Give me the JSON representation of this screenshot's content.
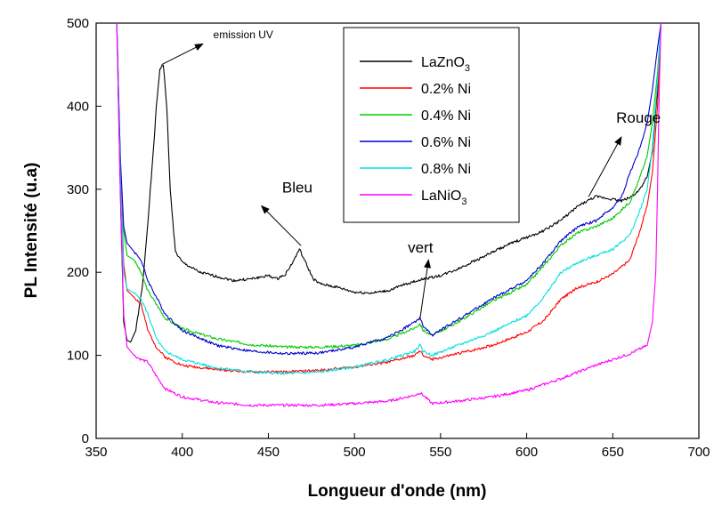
{
  "chart_data": {
    "type": "line",
    "xlabel": "Longueur d'onde (nm)",
    "ylabel": "PL Intensité (u.a)",
    "xlim": [
      350,
      700
    ],
    "ylim": [
      0,
      500
    ],
    "xticks": [
      "350",
      "400",
      "450",
      "500",
      "550",
      "600",
      "650",
      "700"
    ],
    "yticks": [
      "0",
      "100",
      "200",
      "300",
      "400",
      "500"
    ],
    "grid": false,
    "legend_position": "top-center",
    "series": [
      {
        "name": "LaZnO",
        "name_subscript": "3",
        "color": "#000000",
        "x": [
          362,
          364,
          366,
          368,
          370,
          373,
          377,
          380,
          383,
          385,
          387,
          389,
          391,
          393,
          396,
          400,
          410,
          420,
          430,
          440,
          450,
          455,
          460,
          465,
          468,
          472,
          476,
          480,
          490,
          500,
          510,
          520,
          530,
          540,
          550,
          560,
          570,
          580,
          590,
          600,
          610,
          620,
          630,
          640,
          650,
          655,
          660,
          665,
          670,
          673,
          676,
          678
        ],
        "y": [
          500,
          300,
          140,
          118,
          116,
          130,
          185,
          260,
          340,
          400,
          445,
          450,
          400,
          300,
          225,
          212,
          200,
          195,
          190,
          192,
          196,
          192,
          198,
          215,
          228,
          210,
          192,
          186,
          182,
          176,
          175,
          178,
          186,
          192,
          196,
          204,
          214,
          224,
          234,
          242,
          250,
          263,
          280,
          291,
          288,
          286,
          290,
          298,
          315,
          345,
          420,
          500
        ]
      },
      {
        "name": "0.2% Ni",
        "color": "#ff0000",
        "x": [
          362,
          364,
          366,
          368,
          372,
          376,
          380,
          385,
          390,
          400,
          420,
          440,
          460,
          480,
          500,
          520,
          535,
          538,
          540,
          545,
          560,
          580,
          600,
          610,
          620,
          630,
          640,
          650,
          660,
          665,
          670,
          673,
          676,
          678
        ],
        "y": [
          500,
          330,
          210,
          178,
          170,
          162,
          130,
          110,
          98,
          88,
          83,
          80,
          80,
          82,
          86,
          92,
          100,
          105,
          100,
          95,
          102,
          112,
          128,
          142,
          168,
          182,
          188,
          198,
          215,
          245,
          280,
          320,
          400,
          500
        ]
      },
      {
        "name": "0.4% Ni",
        "color": "#00cc00",
        "x": [
          362,
          364,
          366,
          368,
          372,
          376,
          380,
          390,
          400,
          420,
          440,
          460,
          480,
          500,
          520,
          535,
          538,
          540,
          545,
          560,
          580,
          600,
          610,
          620,
          630,
          640,
          650,
          660,
          665,
          670,
          673,
          676,
          678
        ],
        "y": [
          500,
          340,
          250,
          220,
          215,
          200,
          178,
          145,
          132,
          120,
          113,
          110,
          110,
          112,
          120,
          133,
          138,
          130,
          124,
          140,
          165,
          185,
          208,
          233,
          248,
          255,
          265,
          285,
          310,
          340,
          380,
          440,
          500
        ]
      },
      {
        "name": "0.6% Ni",
        "color": "#0000cc",
        "x": [
          362,
          364,
          366,
          368,
          372,
          376,
          380,
          390,
          400,
          420,
          440,
          460,
          480,
          500,
          520,
          535,
          538,
          540,
          545,
          560,
          580,
          600,
          610,
          620,
          630,
          640,
          650,
          655,
          660,
          665,
          670,
          673,
          676,
          678
        ],
        "y": [
          500,
          340,
          255,
          235,
          225,
          215,
          190,
          150,
          130,
          112,
          105,
          102,
          103,
          110,
          122,
          140,
          145,
          135,
          124,
          143,
          168,
          190,
          212,
          238,
          255,
          262,
          278,
          290,
          320,
          345,
          380,
          420,
          470,
          500
        ]
      },
      {
        "name": "0.8% Ni",
        "color": "#00e0e0",
        "x": [
          362,
          364,
          366,
          368,
          372,
          376,
          380,
          385,
          390,
          400,
          420,
          440,
          460,
          480,
          500,
          520,
          535,
          538,
          540,
          545,
          560,
          580,
          600,
          610,
          620,
          630,
          640,
          650,
          660,
          665,
          670,
          673,
          676,
          678
        ],
        "y": [
          500,
          320,
          200,
          180,
          175,
          168,
          150,
          120,
          105,
          95,
          85,
          80,
          78,
          80,
          86,
          95,
          105,
          112,
          105,
          100,
          112,
          128,
          148,
          170,
          200,
          212,
          220,
          228,
          245,
          270,
          300,
          350,
          430,
          500
        ]
      },
      {
        "name": "LaNiO",
        "name_subscript": "3",
        "color": "#ff00ff",
        "x": [
          362,
          364,
          366,
          368,
          372,
          376,
          380,
          385,
          390,
          400,
          420,
          440,
          460,
          480,
          500,
          520,
          535,
          538,
          540,
          545,
          560,
          580,
          600,
          620,
          640,
          660,
          670,
          673,
          675,
          676,
          677,
          678
        ],
        "y": [
          500,
          300,
          150,
          110,
          100,
          95,
          92,
          75,
          60,
          50,
          43,
          40,
          40,
          40,
          42,
          45,
          52,
          55,
          52,
          42,
          45,
          50,
          58,
          72,
          88,
          102,
          112,
          140,
          200,
          300,
          420,
          500
        ]
      }
    ],
    "annotations": [
      {
        "text": "emission UV",
        "x": 418,
        "y": 482,
        "font_size": 12,
        "arrow_from": [
          388,
          450
        ],
        "arrow_to": [
          412,
          475
        ]
      },
      {
        "text": "Bleu",
        "x": 458,
        "y": 296,
        "font_size": 17,
        "arrow_from": [
          469,
          232
        ],
        "arrow_to": [
          446,
          280
        ]
      },
      {
        "text": "vert",
        "x": 531,
        "y": 224,
        "font_size": 17,
        "arrow_from": [
          538,
          143
        ],
        "arrow_to": [
          543,
          215
        ]
      },
      {
        "text": "Rouge",
        "x": 652,
        "y": 380,
        "font_size": 17,
        "arrow_from": [
          636,
          291
        ],
        "arrow_to": [
          655,
          363
        ]
      }
    ]
  }
}
